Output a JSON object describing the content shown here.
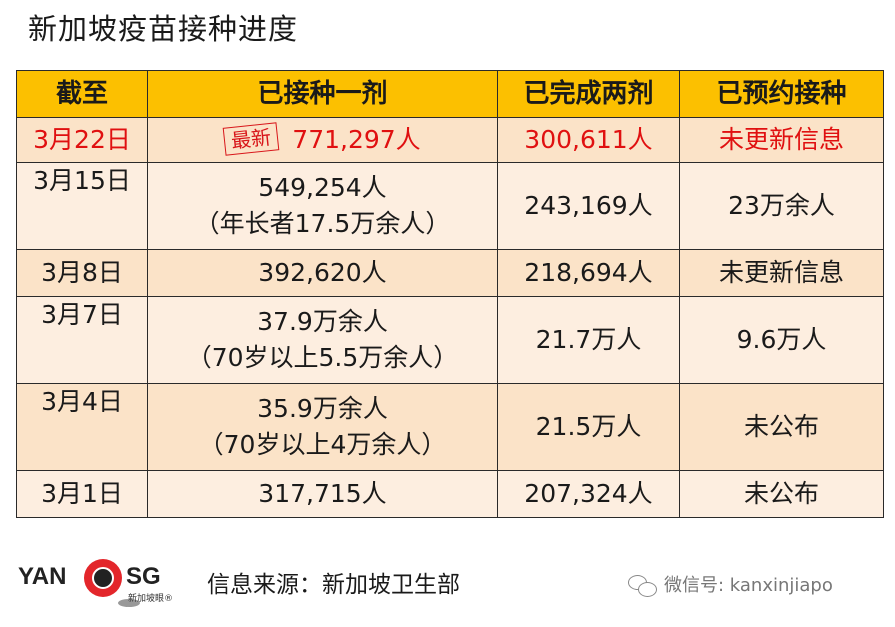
{
  "title": "新加坡疫苗接种进度",
  "table": {
    "headers": [
      "截至",
      "已接种一剂",
      "已完成两剂",
      "已预约接种"
    ],
    "rows": [
      {
        "date": "3月22日",
        "stamp": "最新",
        "dose1": "771,297人",
        "dose1_note": "",
        "dose2": "300,611人",
        "booked": "未更新信息",
        "highlight": true
      },
      {
        "date": "3月15日",
        "dose1": "549,254人",
        "dose1_note": "（年长者17.5万余人）",
        "dose2": "243,169人",
        "booked": "23万余人"
      },
      {
        "date": "3月8日",
        "dose1": "392,620人",
        "dose1_note": "",
        "dose2": "218,694人",
        "booked": "未更新信息"
      },
      {
        "date": "3月7日",
        "dose1": "37.9万余人",
        "dose1_note": "（70岁以上5.5万余人）",
        "dose2": "21.7万人",
        "booked": "9.6万人"
      },
      {
        "date": "3月4日",
        "dose1": "35.9万余人",
        "dose1_note": "（70岁以上4万余人）",
        "dose2": "21.5万人",
        "booked": "未公布"
      },
      {
        "date": "3月1日",
        "dose1": "317,715人",
        "dose1_note": "",
        "dose2": "207,324人",
        "booked": "未公布"
      }
    ]
  },
  "footer": {
    "logo_left": "YAN",
    "logo_right": "SG",
    "logo_sub": "新加坡眼®",
    "source": "信息来源：新加坡卫生部",
    "wechat": "微信号: kanxinjiapo"
  },
  "colors": {
    "header_bg": "#fcc000",
    "row_light": "#fdeee0",
    "row_dark": "#fbe3c8",
    "highlight_text": "#e01010"
  }
}
